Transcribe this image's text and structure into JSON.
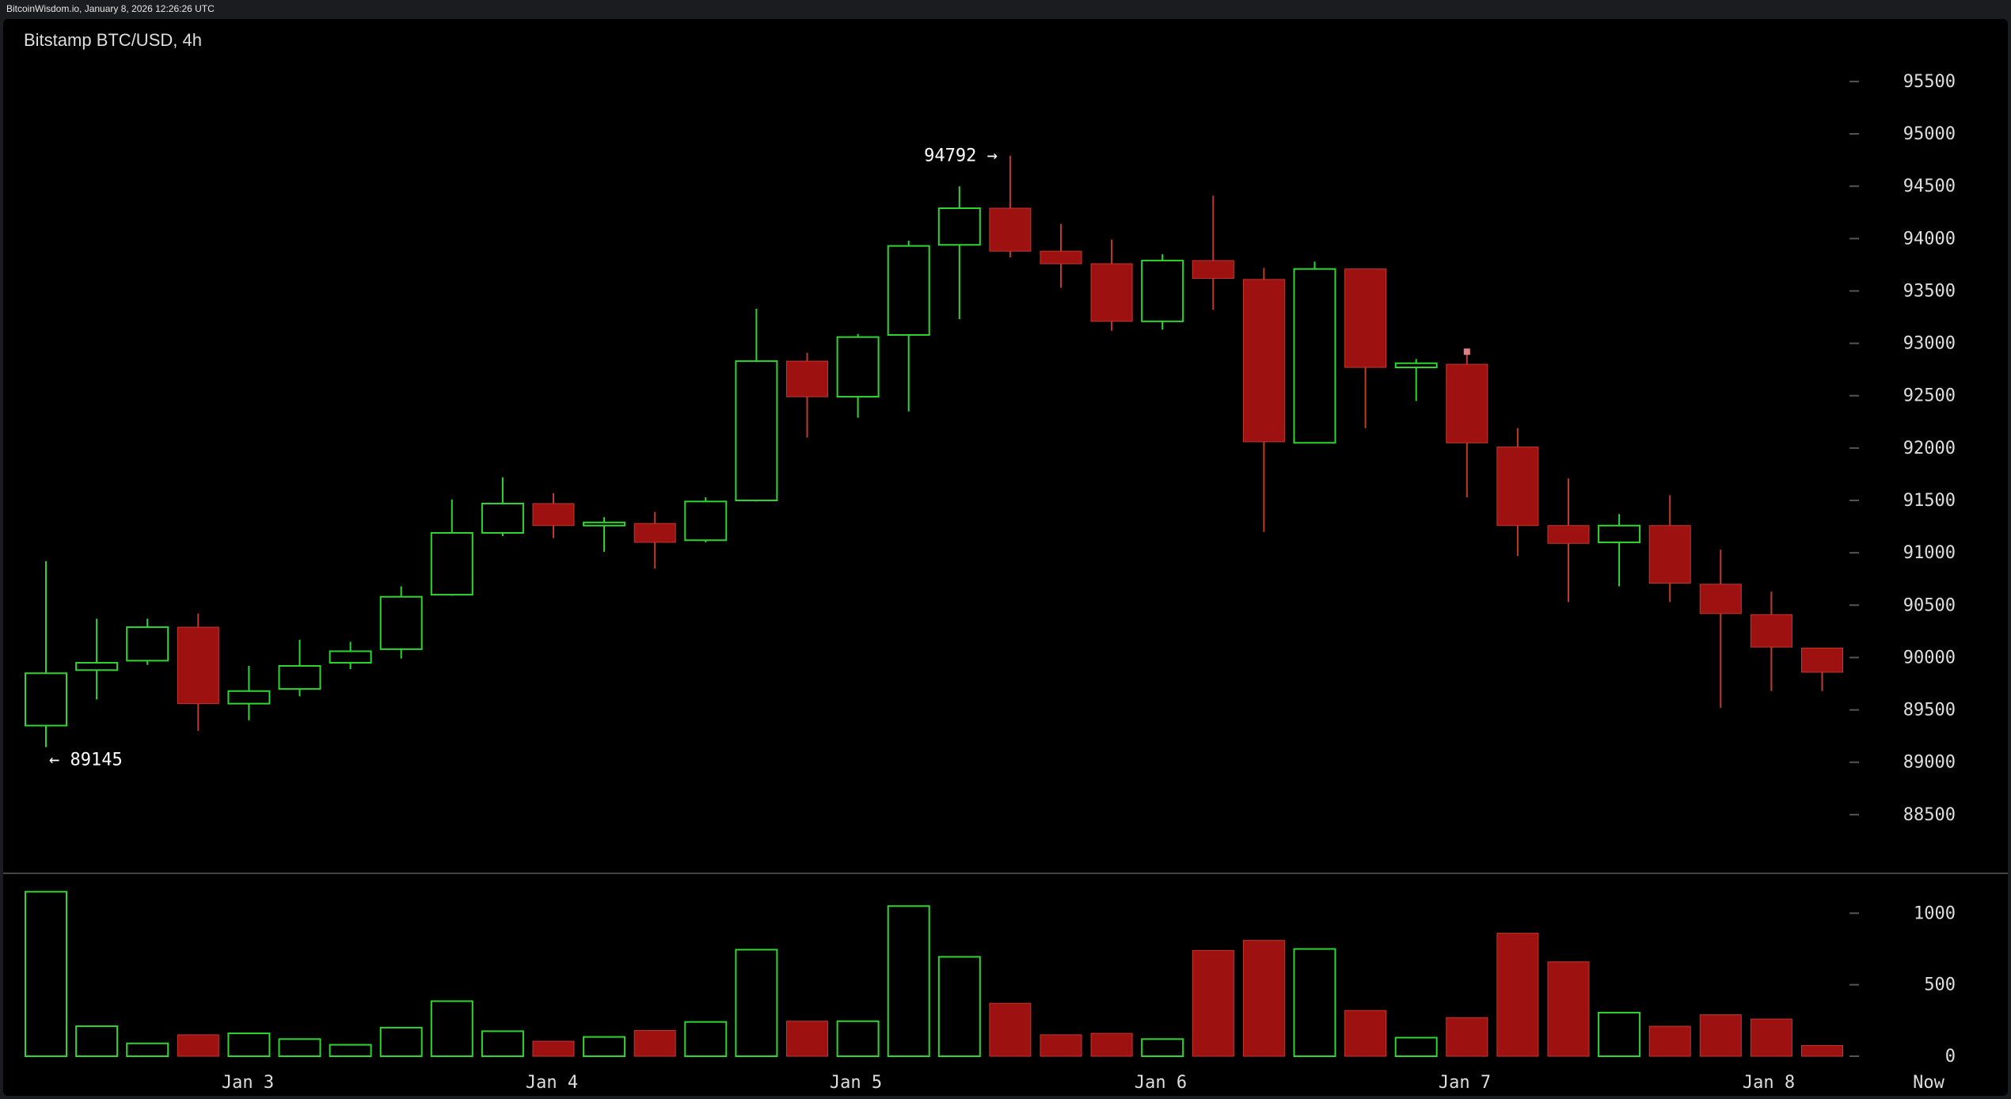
{
  "header": {
    "site_info": "BitcoinWisdom.io, January 8, 2026 12:26:26 UTC"
  },
  "chart_data": {
    "type": "candlestick",
    "title": "Bitstamp BTC/USD, 4h",
    "colors": {
      "up": "#2fd62f",
      "down": "#9e1111",
      "down_stroke": "#c0392b",
      "background": "#000000",
      "axis_text": "#dedede",
      "tick": "#555555",
      "separator": "#444444",
      "marker": "#e08080"
    },
    "price_axis": {
      "ylim": [
        88000,
        95900
      ],
      "ticks": [
        88500,
        89000,
        89500,
        90000,
        90500,
        91000,
        91500,
        92000,
        92500,
        93000,
        93500,
        94000,
        94500,
        95000,
        95500
      ]
    },
    "volume_axis": {
      "ylim": [
        0,
        1240
      ],
      "ticks": [
        0,
        500,
        1000
      ]
    },
    "x_labels": [
      "Jan 3",
      "Jan 4",
      "Jan 5",
      "Jan 6",
      "Jan 7",
      "Jan 8",
      "Now"
    ],
    "annotations": {
      "high_label": "94792 →",
      "high_value": 94792,
      "low_label": "← 89145",
      "low_value": 89145
    },
    "candles": [
      {
        "time": "Jan 2 12:00",
        "open": 89350,
        "high": 90920,
        "low": 89145,
        "close": 89850,
        "volume": 1150
      },
      {
        "time": "Jan 2 16:00",
        "open": 89880,
        "high": 90370,
        "low": 89600,
        "close": 89950,
        "volume": 210
      },
      {
        "time": "Jan 2 20:00",
        "open": 89970,
        "high": 90370,
        "low": 89930,
        "close": 90290,
        "volume": 90
      },
      {
        "time": "Jan 3 00:00",
        "open": 90290,
        "high": 90420,
        "low": 89300,
        "close": 89560,
        "volume": 150
      },
      {
        "time": "Jan 3 04:00",
        "open": 89560,
        "high": 89920,
        "low": 89400,
        "close": 89680,
        "volume": 160
      },
      {
        "time": "Jan 3 08:00",
        "open": 89700,
        "high": 90170,
        "low": 89630,
        "close": 89920,
        "volume": 120
      },
      {
        "time": "Jan 3 12:00",
        "open": 89950,
        "high": 90150,
        "low": 89890,
        "close": 90060,
        "volume": 80
      },
      {
        "time": "Jan 3 16:00",
        "open": 90080,
        "high": 90680,
        "low": 89990,
        "close": 90580,
        "volume": 200
      },
      {
        "time": "Jan 3 20:00",
        "open": 90600,
        "high": 91510,
        "low": 90590,
        "close": 91190,
        "volume": 385
      },
      {
        "time": "Jan 4 00:00",
        "open": 91190,
        "high": 91720,
        "low": 91160,
        "close": 91470,
        "volume": 175
      },
      {
        "time": "Jan 4 04:00",
        "open": 91470,
        "high": 91570,
        "low": 91140,
        "close": 91260,
        "volume": 105
      },
      {
        "time": "Jan 4 08:00",
        "open": 91260,
        "high": 91340,
        "low": 91010,
        "close": 91290,
        "volume": 135
      },
      {
        "time": "Jan 4 12:00",
        "open": 91280,
        "high": 91390,
        "low": 90850,
        "close": 91100,
        "volume": 180
      },
      {
        "time": "Jan 4 16:00",
        "open": 91120,
        "high": 91530,
        "low": 91100,
        "close": 91490,
        "volume": 240
      },
      {
        "time": "Jan 4 20:00",
        "open": 91500,
        "high": 93330,
        "low": 91490,
        "close": 92830,
        "volume": 745
      },
      {
        "time": "Jan 5 00:00",
        "open": 92830,
        "high": 92910,
        "low": 92100,
        "close": 92490,
        "volume": 245
      },
      {
        "time": "Jan 5 04:00",
        "open": 92490,
        "high": 93090,
        "low": 92290,
        "close": 93060,
        "volume": 245
      },
      {
        "time": "Jan 5 08:00",
        "open": 93080,
        "high": 93980,
        "low": 92350,
        "close": 93930,
        "volume": 1050
      },
      {
        "time": "Jan 5 12:00",
        "open": 93940,
        "high": 94500,
        "low": 93230,
        "close": 94290,
        "volume": 695
      },
      {
        "time": "Jan 5 16:00",
        "open": 94290,
        "high": 94792,
        "low": 93820,
        "close": 93880,
        "volume": 370
      },
      {
        "time": "Jan 5 20:00",
        "open": 93880,
        "high": 94140,
        "low": 93530,
        "close": 93760,
        "volume": 150
      },
      {
        "time": "Jan 6 00:00",
        "open": 93760,
        "high": 93990,
        "low": 93120,
        "close": 93210,
        "volume": 160
      },
      {
        "time": "Jan 6 04:00",
        "open": 93210,
        "high": 93850,
        "low": 93130,
        "close": 93790,
        "volume": 120
      },
      {
        "time": "Jan 6 08:00",
        "open": 93790,
        "high": 94410,
        "low": 93320,
        "close": 93620,
        "volume": 740
      },
      {
        "time": "Jan 6 12:00",
        "open": 93610,
        "high": 93720,
        "low": 91200,
        "close": 92060,
        "volume": 810
      },
      {
        "time": "Jan 6 16:00",
        "open": 92050,
        "high": 93780,
        "low": 92050,
        "close": 93710,
        "volume": 750
      },
      {
        "time": "Jan 6 20:00",
        "open": 93710,
        "high": 93710,
        "low": 92190,
        "close": 92770,
        "volume": 320
      },
      {
        "time": "Jan 7 00:00",
        "open": 92770,
        "high": 92850,
        "low": 92450,
        "close": 92810,
        "volume": 130
      },
      {
        "time": "Jan 7 04:00",
        "open": 92800,
        "high": 92900,
        "low": 91530,
        "close": 92050,
        "volume": 270
      },
      {
        "time": "Jan 7 08:00",
        "open": 92010,
        "high": 92190,
        "low": 90970,
        "close": 91260,
        "volume": 860
      },
      {
        "time": "Jan 7 12:00",
        "open": 91260,
        "high": 91710,
        "low": 90530,
        "close": 91090,
        "volume": 660
      },
      {
        "time": "Jan 7 16:00",
        "open": 91100,
        "high": 91370,
        "low": 90680,
        "close": 91260,
        "volume": 305
      },
      {
        "time": "Jan 7 20:00",
        "open": 91260,
        "high": 91550,
        "low": 90530,
        "close": 90710,
        "volume": 210
      },
      {
        "time": "Jan 8 00:00",
        "open": 90700,
        "high": 91030,
        "low": 89520,
        "close": 90420,
        "volume": 290
      },
      {
        "time": "Jan 8 04:00",
        "open": 90410,
        "high": 90630,
        "low": 89680,
        "close": 90100,
        "volume": 260
      },
      {
        "time": "Jan 8 08:00",
        "open": 90090,
        "high": 90090,
        "low": 89680,
        "close": 89860,
        "volume": 75
      }
    ]
  }
}
